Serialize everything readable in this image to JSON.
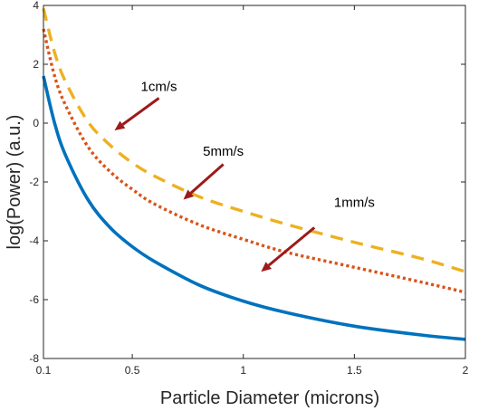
{
  "chart_data": {
    "type": "line",
    "xlabel": "Particle Diameter (microns)",
    "ylabel": "log(Power) (a.u.)",
    "xlim": [
      0.1,
      2
    ],
    "ylim": [
      -8,
      4
    ],
    "xticks": [
      0.1,
      0.5,
      1,
      1.5,
      2
    ],
    "xtick_labels": [
      "0.1",
      "0.5",
      "1",
      "1.5",
      "2"
    ],
    "yticks": [
      -8,
      -6,
      -4,
      -2,
      0,
      2,
      4
    ],
    "ytick_labels": [
      "-8",
      "-6",
      "-4",
      "-2",
      "0",
      "2",
      "4"
    ],
    "grid": false,
    "legend": "none",
    "series": [
      {
        "color": "#0072BD",
        "style": "solid",
        "x": [
          0.1,
          0.15,
          0.2,
          0.3,
          0.4,
          0.5,
          0.6,
          0.8,
          1.0,
          1.2,
          1.5,
          1.8,
          2.0
        ],
        "y": [
          1.6,
          0.0,
          -1.1,
          -2.6,
          -3.55,
          -4.2,
          -4.7,
          -5.5,
          -6.05,
          -6.45,
          -6.9,
          -7.2,
          -7.35
        ]
      },
      {
        "color": "#D95319",
        "style": "dotted",
        "x": [
          0.1,
          0.15,
          0.2,
          0.3,
          0.4,
          0.5,
          0.6,
          0.8,
          1.0,
          1.2,
          1.5,
          1.8,
          2.0
        ],
        "y": [
          3.2,
          1.6,
          0.6,
          -0.8,
          -1.65,
          -2.25,
          -2.75,
          -3.45,
          -3.95,
          -4.4,
          -4.9,
          -5.4,
          -5.75
        ]
      },
      {
        "color": "#EDB120",
        "style": "dashed",
        "x": [
          0.1,
          0.15,
          0.2,
          0.3,
          0.4,
          0.5,
          0.6,
          0.8,
          1.0,
          1.2,
          1.5,
          1.8,
          2.0
        ],
        "y": [
          3.9,
          2.4,
          1.4,
          0.05,
          -0.75,
          -1.35,
          -1.8,
          -2.5,
          -3.0,
          -3.45,
          -4.05,
          -4.6,
          -5.05
        ]
      }
    ],
    "annotations": [
      {
        "text": "1cm/s",
        "text_x": 0.62,
        "text_y": 1.1,
        "arrow_from": [
          0.62,
          0.85
        ],
        "arrow_to": [
          0.42,
          -0.25
        ]
      },
      {
        "text": "5mm/s",
        "text_x": 0.91,
        "text_y": -1.1,
        "arrow_from": [
          0.91,
          -1.4
        ],
        "arrow_to": [
          0.73,
          -2.6
        ]
      },
      {
        "text": "1mm/s",
        "text_x": 1.5,
        "text_y": -2.85,
        "arrow_from": [
          1.32,
          -3.55
        ],
        "arrow_to": [
          1.08,
          -5.05
        ]
      }
    ],
    "arrow_color": "#9B1B1B"
  }
}
